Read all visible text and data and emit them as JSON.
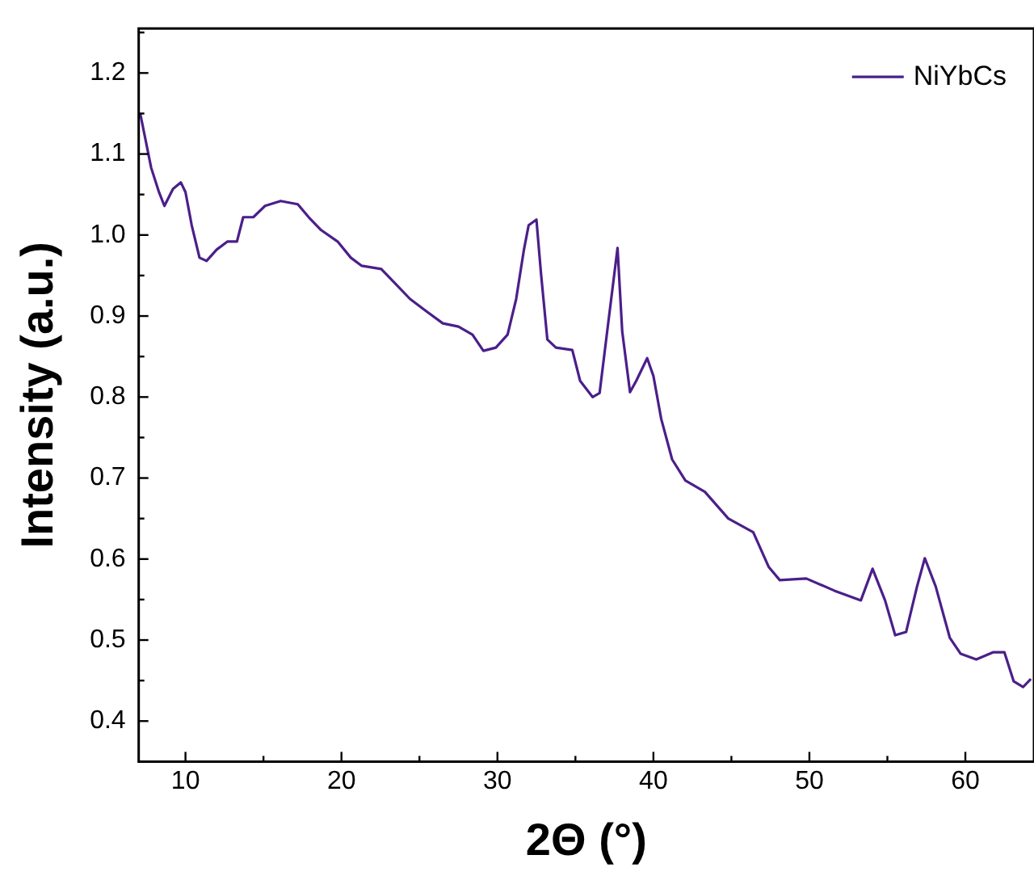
{
  "chart_data": {
    "type": "line",
    "xlabel": "2Θ (°)",
    "ylabel": "Intensity (a.u.)",
    "xlim": [
      7,
      64.4
    ],
    "ylim": [
      0.35,
      1.255
    ],
    "xticks": [
      10,
      20,
      30,
      40,
      50,
      60
    ],
    "yticks": [
      0.4,
      0.5,
      0.6,
      0.7,
      0.8,
      0.9,
      {
        "value": 1,
        "label": "1.0"
      },
      1.1,
      1.2
    ],
    "grid": false,
    "legend": "top right",
    "marker": "none",
    "line_style": "solid",
    "series": [
      {
        "name": "NiYbCs",
        "color": "#4b1f8a",
        "x": [
          7.1,
          7.8,
          8.3,
          8.65,
          9.2,
          9.7,
          10.0,
          10.4,
          10.9,
          11.35,
          12.0,
          12.7,
          13.3,
          13.7,
          14.35,
          15.1,
          16.1,
          17.2,
          17.9,
          18.7,
          19.75,
          20.6,
          21.3,
          22.55,
          23.4,
          24.4,
          25.5,
          26.5,
          27.5,
          28.4,
          29.1,
          29.9,
          30.65,
          31.2,
          31.7,
          32.0,
          32.5,
          32.8,
          33.2,
          33.75,
          34.8,
          35.3,
          36.1,
          36.55,
          37.1,
          37.7,
          38.0,
          38.5,
          38.9,
          39.6,
          40.0,
          40.5,
          41.2,
          42.05,
          43.3,
          44.8,
          46.4,
          47.4,
          48.1,
          49.8,
          51.6,
          53.3,
          54.05,
          54.85,
          55.5,
          56.2,
          56.9,
          57.4,
          58.1,
          59.0,
          59.7,
          60.7,
          61.8,
          62.5,
          63.1,
          63.7,
          64.2
        ],
        "values": [
          1.15,
          1.083,
          1.053,
          1.036,
          1.057,
          1.065,
          1.053,
          1.012,
          0.972,
          0.968,
          0.982,
          0.992,
          0.992,
          1.022,
          1.022,
          1.036,
          1.042,
          1.038,
          1.022,
          1.006,
          0.992,
          0.972,
          0.962,
          0.958,
          0.941,
          0.921,
          0.905,
          0.891,
          0.887,
          0.877,
          0.857,
          0.861,
          0.877,
          0.921,
          0.982,
          1.012,
          1.019,
          0.951,
          0.871,
          0.861,
          0.858,
          0.82,
          0.8,
          0.805,
          0.891,
          0.984,
          0.881,
          0.806,
          0.82,
          0.848,
          0.826,
          0.773,
          0.723,
          0.697,
          0.683,
          0.65,
          0.633,
          0.59,
          0.574,
          0.576,
          0.561,
          0.549,
          0.588,
          0.549,
          0.506,
          0.51,
          0.566,
          0.601,
          0.566,
          0.503,
          0.483,
          0.476,
          0.485,
          0.485,
          0.449,
          0.442,
          0.452
        ]
      }
    ]
  }
}
